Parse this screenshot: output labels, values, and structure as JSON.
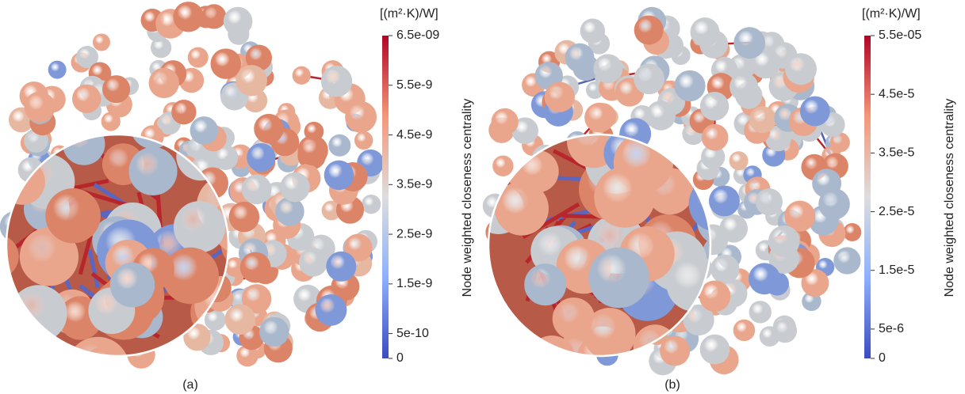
{
  "panels": [
    {
      "unit": "[(m²·K)/W]",
      "axis_label": "Node weighted closeness centrality",
      "caption": "(a)",
      "range": [
        0,
        6.5e-09
      ],
      "ticks": [
        {
          "value": 6.5e-09,
          "label": "6.5e-09"
        },
        {
          "value": 5.5e-09,
          "label": "5.5e-9"
        },
        {
          "value": 4.5e-09,
          "label": "4.5e-9"
        },
        {
          "value": 3.5e-09,
          "label": "3.5e-9"
        },
        {
          "value": 2.5e-09,
          "label": "2.5e-9"
        },
        {
          "value": 1.5e-09,
          "label": "1.5e-9"
        },
        {
          "value": 5e-10,
          "label": "5e-10"
        },
        0
      ]
    },
    {
      "unit": "[(m²·K)/W]",
      "axis_label": "Node weighted closeness centrality",
      "caption": "(b)",
      "range": [
        0,
        5.5e-05
      ],
      "ticks": [
        {
          "value": 5.5e-05,
          "label": "5.5e-05"
        },
        {
          "value": 4.5e-05,
          "label": "4.5e-5"
        },
        {
          "value": 3.5e-05,
          "label": "3.5e-5"
        },
        {
          "value": 2.5e-05,
          "label": "2.5e-5"
        },
        {
          "value": 1.5e-05,
          "label": "1.5e-5"
        },
        {
          "value": 5e-06,
          "label": "5e-6"
        },
        0
      ]
    }
  ]
}
